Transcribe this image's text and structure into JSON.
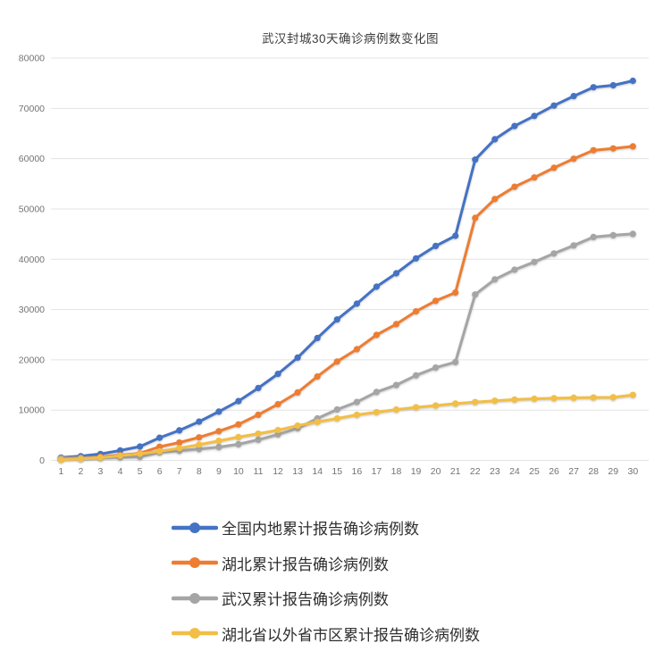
{
  "page": {
    "background": "#ffffff"
  },
  "chart": {
    "title": "武汉封城30天确诊病例数变化图"
  },
  "chart_data": {
    "type": "line",
    "title": "武汉封城30天确诊病例数变化图",
    "xlabel": "",
    "ylabel": "",
    "x": [
      1,
      2,
      3,
      4,
      5,
      6,
      7,
      8,
      9,
      10,
      11,
      12,
      13,
      14,
      15,
      16,
      17,
      18,
      19,
      20,
      21,
      22,
      23,
      24,
      25,
      26,
      27,
      28,
      29,
      30
    ],
    "ylim": [
      0,
      80000
    ],
    "ytick_step": 10000,
    "ytick_labels": [
      "0",
      "10000",
      "20000",
      "30000",
      "40000",
      "50000",
      "60000",
      "70000",
      "80000"
    ],
    "grid": true,
    "marker": "circle",
    "legend_position": "bottom-left",
    "series": [
      {
        "name": "全国内地累计报告确诊病例数",
        "color": "#4472C4",
        "values": [
          571,
          830,
          1287,
          1975,
          2744,
          4515,
          5974,
          7711,
          9692,
          11791,
          14380,
          17205,
          20438,
          24324,
          28018,
          31161,
          34546,
          37198,
          40171,
          42638,
          44653,
          59804,
          63851,
          66492,
          68500,
          70548,
          72436,
          74185,
          74576,
          75465
        ]
      },
      {
        "name": "湖北累计报告确诊病例数",
        "color": "#ED7D31",
        "values": [
          444,
          549,
          729,
          1052,
          1423,
          2714,
          3554,
          4586,
          5806,
          7153,
          9074,
          11177,
          13522,
          16678,
          19665,
          22112,
          24953,
          27100,
          29631,
          31728,
          33366,
          48206,
          51986,
          54406,
          56249,
          58182,
          59989,
          61682,
          62031,
          62442
        ]
      },
      {
        "name": "武汉累计报告确诊病例数",
        "color": "#A5A5A5",
        "values": [
          425,
          495,
          572,
          618,
          698,
          1590,
          1905,
          2261,
          2639,
          3215,
          4109,
          5142,
          6384,
          8351,
          10117,
          11618,
          13603,
          14982,
          16902,
          18454,
          19558,
          32994,
          35991,
          37914,
          39462,
          41152,
          42752,
          44412,
          44765,
          45027
        ]
      },
      {
        "name": "湖北省以外省市区累计报告确诊病例数",
        "color": "#F2BE45",
        "values": [
          127,
          281,
          558,
          923,
          1321,
          1801,
          2420,
          3125,
          3886,
          4638,
          5306,
          6028,
          6916,
          7646,
          8353,
          9049,
          9593,
          10098,
          10540,
          10910,
          11287,
          11598,
          11865,
          12086,
          12251,
          12366,
          12447,
          12503,
          12545,
          13023
        ]
      }
    ]
  }
}
